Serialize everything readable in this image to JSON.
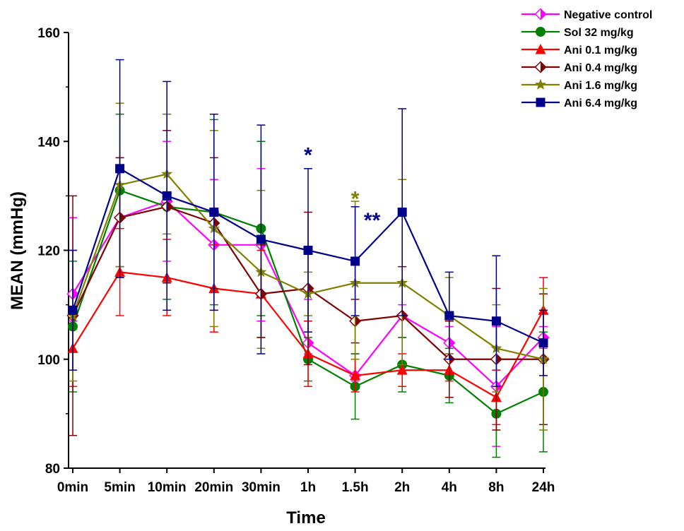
{
  "chart_data": {
    "type": "line",
    "xlabel": "Time",
    "ylabel": "MEAN (mmHg)",
    "categories": [
      "0min",
      "5min",
      "10min",
      "20min",
      "30min",
      "1h",
      "1.5h",
      "2h",
      "4h",
      "8h",
      "24h"
    ],
    "ylim": [
      80,
      160
    ],
    "yticks": [
      80,
      100,
      120,
      140,
      160
    ],
    "error_bars": true,
    "legend_position": "top-right",
    "series": [
      {
        "name": "Negative control",
        "color": "#ff00ff",
        "marker": "diamond-half",
        "values": [
          112,
          126,
          129,
          121,
          121,
          103,
          97,
          108,
          103,
          95,
          104
        ],
        "err_low": [
          107,
          117,
          118,
          109,
          107,
          101,
          96,
          104,
          101,
          84,
          102
        ],
        "err_high": [
          126,
          137,
          140,
          133,
          135,
          111,
          101,
          110,
          106,
          106,
          106
        ]
      },
      {
        "name": "Sol 32 mg/kg",
        "color": "#007f00",
        "marker": "circle",
        "values": [
          106,
          131,
          128,
          127,
          124,
          100,
          95,
          99,
          97,
          90,
          94
        ],
        "err_low": [
          94,
          117,
          111,
          110,
          108,
          96,
          89,
          94,
          92,
          82,
          83
        ],
        "err_high": [
          118,
          145,
          145,
          144,
          140,
          104,
          101,
          104,
          102,
          98,
          105
        ]
      },
      {
        "name": "Ani 0.1 mg/kg",
        "color": "#ff0000",
        "marker": "triangle",
        "values": [
          102,
          116,
          115,
          113,
          112,
          101,
          97,
          98,
          98,
          93,
          109
        ],
        "err_low": [
          95,
          108,
          108,
          105,
          104,
          95,
          94,
          95,
          96,
          88,
          103
        ],
        "err_high": [
          109,
          124,
          122,
          121,
          120,
          107,
          100,
          101,
          100,
          98,
          115
        ]
      },
      {
        "name": "Ani 0.4 mg/kg",
        "color": "#800000",
        "marker": "diamond-half",
        "values": [
          108,
          126,
          128,
          125,
          112,
          113,
          107,
          108,
          100,
          100,
          100
        ],
        "err_low": [
          86,
          115,
          114,
          113,
          104,
          99,
          103,
          99,
          93,
          87,
          88
        ],
        "err_high": [
          130,
          137,
          142,
          137,
          121,
          127,
          111,
          117,
          107,
          113,
          112
        ]
      },
      {
        "name": "Ani 1.6 mg/kg",
        "color": "#808000",
        "marker": "star",
        "values": [
          108,
          132,
          134,
          124,
          116,
          112,
          114,
          114,
          108,
          102,
          100
        ],
        "err_low": [
          96,
          117,
          123,
          106,
          102,
          108,
          100,
          99,
          101,
          94,
          87
        ],
        "err_high": [
          120,
          147,
          145,
          142,
          131,
          116,
          129,
          133,
          115,
          110,
          113
        ]
      },
      {
        "name": "Ani 6.4 mg/kg",
        "color": "#00008b",
        "marker": "square",
        "values": [
          109,
          135,
          130,
          127,
          122,
          120,
          118,
          127,
          108,
          107,
          103
        ],
        "err_low": [
          98,
          115,
          109,
          109,
          101,
          105,
          108,
          108,
          100,
          95,
          97
        ],
        "err_high": [
          120,
          155,
          151,
          145,
          143,
          135,
          128,
          146,
          116,
          119,
          109
        ]
      }
    ],
    "annotations": [
      {
        "text": "*",
        "category": "1h",
        "y": 138,
        "color": "#00008b"
      },
      {
        "text": "*",
        "category": "1.5h",
        "y": 130,
        "color": "#808000"
      },
      {
        "text": "**",
        "category": "1.5h",
        "y": 126,
        "color": "#00008b"
      }
    ]
  }
}
